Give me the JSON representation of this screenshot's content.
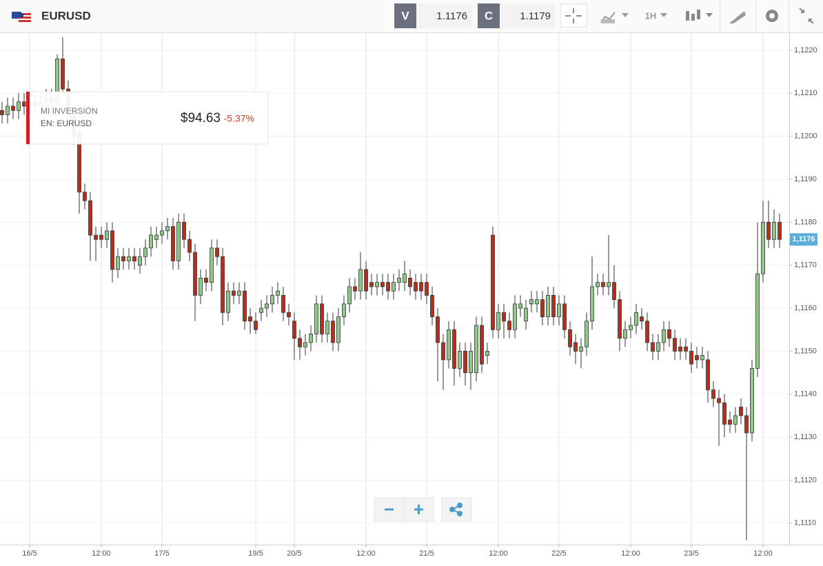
{
  "header": {
    "symbol": "EURUSD",
    "sell_label": "V",
    "sell_price": "1.1176",
    "buy_label": "C",
    "buy_price": "1.1179",
    "timeframe": "1H"
  },
  "investment": {
    "label": "MI INVERSIÓN",
    "instrument": "EN: EURUSD",
    "value": "$94.63",
    "change": "-5.37%"
  },
  "chart_data": {
    "type": "candlestick",
    "up_color": "#93c68c",
    "down_color": "#b5301a",
    "grid": true,
    "x": [
      0,
      1,
      2,
      3,
      4,
      5,
      6,
      7,
      8,
      9,
      10,
      11,
      12,
      13,
      14,
      15,
      16,
      17,
      18,
      19,
      20,
      21,
      22,
      23,
      24,
      25,
      26,
      27,
      28,
      29,
      30,
      31,
      32,
      33,
      34,
      35,
      36,
      37,
      38,
      39,
      40,
      41,
      42,
      43,
      44,
      45,
      46,
      47,
      48,
      49,
      50,
      51,
      52,
      53,
      54,
      55,
      56,
      57,
      58,
      59,
      60,
      61,
      62,
      63,
      64,
      65,
      66,
      67,
      68,
      69,
      70,
      71,
      72,
      73,
      74,
      75,
      76,
      77,
      78,
      79,
      80,
      81,
      82,
      83,
      84,
      85,
      86,
      87,
      88,
      89,
      90,
      91,
      92,
      93,
      94,
      95,
      96,
      97,
      98,
      99,
      100,
      101,
      102,
      103,
      104,
      105,
      106,
      107,
      108,
      109,
      110,
      111,
      112,
      113,
      114,
      115,
      116,
      117,
      118,
      119,
      120,
      121,
      122,
      123,
      124,
      125,
      126,
      127,
      128,
      129,
      130,
      131,
      132,
      133,
      134,
      135,
      136,
      137,
      138,
      139,
      140,
      141
    ],
    "open": [
      1.1206,
      1.1205,
      1.1207,
      1.1206,
      1.1208,
      1.1207,
      1.1208,
      1.1207,
      1.1208,
      1.1209,
      1.1208,
      1.1218,
      1.1211,
      1.1205,
      1.1201,
      1.1187,
      1.1185,
      1.1177,
      1.1177,
      1.1176,
      1.1178,
      1.1169,
      1.1172,
      1.1171,
      1.1172,
      1.117,
      1.1172,
      1.1174,
      1.1176,
      1.1177,
      1.1178,
      1.1179,
      1.1171,
      1.118,
      1.1176,
      1.1173,
      1.1163,
      1.1167,
      1.1166,
      1.1174,
      1.1172,
      1.1159,
      1.1164,
      1.1163,
      1.1164,
      1.1158,
      1.1157,
      1.1159,
      1.116,
      1.1161,
      1.1163,
      1.1163,
      1.1159,
      1.1157,
      1.1153,
      1.1151,
      1.1152,
      1.1154,
      1.1161,
      1.1154,
      1.1157,
      1.1152,
      1.1158,
      1.1161,
      1.1165,
      1.1164,
      1.1169,
      1.1166,
      1.1165,
      1.1166,
      1.1166,
      1.1164,
      1.1166,
      1.1166,
      1.1167,
      1.1166,
      1.1166,
      1.1166,
      1.1163,
      1.1158,
      1.1152,
      1.1148,
      1.1155,
      1.1146,
      1.115,
      1.1145,
      1.1145,
      1.1156,
      1.1149,
      1.1177,
      1.1155,
      1.1159,
      1.1157,
      1.1155,
      1.116,
      1.1157,
      1.1161,
      1.1161,
      1.1162,
      1.1158,
      1.1163,
      1.1158,
      1.1161,
      1.1155,
      1.1152,
      1.115,
      1.1151,
      1.1157,
      1.1165,
      1.1166,
      1.1165,
      1.1166,
      1.1162,
      1.1153,
      1.1155,
      1.1156,
      1.1158,
      1.1157,
      1.1152,
      1.115,
      1.1152,
      1.1155,
      1.1153,
      1.1151,
      1.1151,
      1.115,
      1.1149,
      1.1148,
      1.1148,
      1.1141,
      1.1139,
      1.1138,
      1.1134,
      1.1133,
      1.1137,
      1.1135,
      1.1131,
      1.1146,
      1.1168,
      1.118,
      1.1176,
      1.118
    ],
    "high": [
      1.1208,
      1.1209,
      1.1209,
      1.121,
      1.121,
      1.121,
      1.121,
      1.121,
      1.1211,
      1.1211,
      1.1219,
      1.1223,
      1.1213,
      1.1207,
      1.1203,
      1.1189,
      1.1187,
      1.1179,
      1.1179,
      1.118,
      1.118,
      1.1174,
      1.1174,
      1.1174,
      1.1174,
      1.1174,
      1.1176,
      1.1179,
      1.1179,
      1.118,
      1.1181,
      1.1181,
      1.1182,
      1.1182,
      1.1178,
      1.1175,
      1.1169,
      1.1169,
      1.1176,
      1.1176,
      1.1174,
      1.1166,
      1.1166,
      1.1166,
      1.1166,
      1.116,
      1.1159,
      1.1162,
      1.1163,
      1.1165,
      1.1166,
      1.1165,
      1.1161,
      1.1159,
      1.1155,
      1.1154,
      1.1156,
      1.1163,
      1.1163,
      1.1159,
      1.1159,
      1.116,
      1.1163,
      1.1167,
      1.1167,
      1.1173,
      1.1171,
      1.1168,
      1.1168,
      1.1168,
      1.1168,
      1.1168,
      1.1169,
      1.1171,
      1.1169,
      1.1168,
      1.1168,
      1.1168,
      1.1165,
      1.116,
      1.1154,
      1.1157,
      1.1157,
      1.1152,
      1.1152,
      1.1152,
      1.1158,
      1.1158,
      1.1152,
      1.1179,
      1.1161,
      1.1161,
      1.1159,
      1.1163,
      1.1163,
      1.1162,
      1.1164,
      1.1164,
      1.1164,
      1.1165,
      1.1165,
      1.1163,
      1.1163,
      1.1157,
      1.1154,
      1.1153,
      1.1159,
      1.1172,
      1.1168,
      1.1168,
      1.1177,
      1.117,
      1.1164,
      1.1157,
      1.1158,
      1.1161,
      1.116,
      1.1159,
      1.1154,
      1.1154,
      1.1157,
      1.1157,
      1.1155,
      1.1153,
      1.1153,
      1.1152,
      1.1151,
      1.1151,
      1.115,
      1.1143,
      1.1141,
      1.114,
      1.1136,
      1.1137,
      1.1139,
      1.1137,
      1.1148,
      1.118,
      1.1185,
      1.1185,
      1.1183,
      1.1182
    ],
    "low": [
      1.1203,
      1.1203,
      1.1204,
      1.1204,
      1.1205,
      1.1205,
      1.1205,
      1.1205,
      1.1206,
      1.1206,
      1.1206,
      1.1209,
      1.1203,
      1.1198,
      1.1182,
      1.1183,
      1.1171,
      1.1171,
      1.1174,
      1.1174,
      1.1166,
      1.1167,
      1.1169,
      1.1169,
      1.1169,
      1.1168,
      1.117,
      1.1172,
      1.1174,
      1.1175,
      1.1176,
      1.1169,
      1.1169,
      1.1174,
      1.1171,
      1.1157,
      1.1161,
      1.1164,
      1.1164,
      1.117,
      1.1156,
      1.1157,
      1.1161,
      1.1161,
      1.1155,
      1.1154,
      1.1154,
      1.1157,
      1.1158,
      1.1159,
      1.1161,
      1.1157,
      1.1156,
      1.1148,
      1.1148,
      1.1149,
      1.115,
      1.1152,
      1.1152,
      1.1152,
      1.115,
      1.115,
      1.1156,
      1.1159,
      1.1162,
      1.1162,
      1.1162,
      1.1163,
      1.1163,
      1.1163,
      1.1162,
      1.1162,
      1.1164,
      1.1164,
      1.1163,
      1.1162,
      1.1162,
      1.1161,
      1.1156,
      1.1143,
      1.1141,
      1.1146,
      1.1142,
      1.1144,
      1.1142,
      1.1141,
      1.1143,
      1.1145,
      1.1147,
      1.1153,
      1.1153,
      1.1153,
      1.1153,
      1.1153,
      1.1158,
      1.1155,
      1.1159,
      1.1159,
      1.1156,
      1.1156,
      1.1156,
      1.1156,
      1.1153,
      1.1149,
      1.1147,
      1.1146,
      1.1149,
      1.1155,
      1.1163,
      1.1163,
      1.1163,
      1.116,
      1.115,
      1.1151,
      1.1153,
      1.1154,
      1.1155,
      1.115,
      1.1148,
      1.1148,
      1.115,
      1.1151,
      1.1148,
      1.1148,
      1.1148,
      1.1145,
      1.1146,
      1.1146,
      1.1138,
      1.1137,
      1.1128,
      1.113,
      1.1131,
      1.1131,
      1.1133,
      1.1106,
      1.1129,
      1.1144,
      1.1166,
      1.1174,
      1.1174,
      1.1174
    ],
    "close": [
      1.1205,
      1.1207,
      1.1206,
      1.1208,
      1.1207,
      1.1208,
      1.1207,
      1.1208,
      1.1209,
      1.1208,
      1.1218,
      1.1211,
      1.1205,
      1.12,
      1.1187,
      1.1185,
      1.1177,
      1.1176,
      1.1176,
      1.1178,
      1.1169,
      1.1172,
      1.1171,
      1.1172,
      1.1171,
      1.1172,
      1.1174,
      1.1177,
      1.1177,
      1.1178,
      1.1179,
      1.1171,
      1.118,
      1.1176,
      1.1173,
      1.1163,
      1.1167,
      1.1166,
      1.1174,
      1.1172,
      1.1159,
      1.1164,
      1.1163,
      1.1164,
      1.1157,
      1.1157,
      1.1155,
      1.116,
      1.1161,
      1.1163,
      1.1164,
      1.1159,
      1.1158,
      1.1153,
      1.1151,
      1.1152,
      1.1154,
      1.1161,
      1.1154,
      1.1157,
      1.1152,
      1.1158,
      1.1161,
      1.1165,
      1.1164,
      1.1169,
      1.1164,
      1.1165,
      1.1166,
      1.1165,
      1.1164,
      1.1166,
      1.1167,
      1.1168,
      1.1165,
      1.1164,
      1.1164,
      1.1163,
      1.1158,
      1.1152,
      1.1148,
      1.1155,
      1.1146,
      1.115,
      1.1145,
      1.115,
      1.1156,
      1.1147,
      1.115,
      1.1155,
      1.1159,
      1.1157,
      1.1155,
      1.1161,
      1.1161,
      1.116,
      1.1162,
      1.1162,
      1.1158,
      1.1163,
      1.1158,
      1.1161,
      1.1155,
      1.1151,
      1.115,
      1.1151,
      1.1157,
      1.1165,
      1.1166,
      1.1165,
      1.1166,
      1.1162,
      1.1153,
      1.1155,
      1.1156,
      1.1159,
      1.1157,
      1.1152,
      1.115,
      1.1152,
      1.1155,
      1.1153,
      1.115,
      1.115,
      1.115,
      1.1147,
      1.1148,
      1.1149,
      1.1141,
      1.1139,
      1.1138,
      1.1133,
      1.1133,
      1.1135,
      1.1135,
      1.1131,
      1.1146,
      1.1168,
      1.118,
      1.1176,
      1.118,
      1.1176
    ],
    "current_price": {
      "value": 1.1176,
      "label": "1,1176"
    },
    "ylim": [
      1.1105,
      1.1224
    ],
    "yticks": [
      {
        "value": 1.111,
        "label": "1,1110"
      },
      {
        "value": 1.112,
        "label": "1,1120"
      },
      {
        "value": 1.113,
        "label": "1,1130"
      },
      {
        "value": 1.114,
        "label": "1,1140"
      },
      {
        "value": 1.115,
        "label": "1,1150"
      },
      {
        "value": 1.116,
        "label": "1,1160"
      },
      {
        "value": 1.117,
        "label": "1,1170"
      },
      {
        "value": 1.118,
        "label": "1,1180"
      },
      {
        "value": 1.119,
        "label": "1,1190"
      },
      {
        "value": 1.12,
        "label": "1,1200"
      },
      {
        "value": 1.121,
        "label": "1,1210"
      },
      {
        "value": 1.122,
        "label": "1,1220"
      }
    ],
    "xlim": [
      -0.375,
      142.75
    ],
    "xticks": [
      {
        "value": 5,
        "label": "16/5"
      },
      {
        "value": 18,
        "label": "12:00"
      },
      {
        "value": 29,
        "label": "17/5"
      },
      {
        "value": 46,
        "label": "19/5"
      },
      {
        "value": 53,
        "label": "20/5"
      },
      {
        "value": 66,
        "label": "12:00"
      },
      {
        "value": 77,
        "label": "21/5"
      },
      {
        "value": 90,
        "label": "12:00"
      },
      {
        "value": 101,
        "label": "22/5"
      },
      {
        "value": 114,
        "label": "12:00"
      },
      {
        "value": 125,
        "label": "23/5"
      },
      {
        "value": 138,
        "label": "12:00"
      }
    ]
  }
}
